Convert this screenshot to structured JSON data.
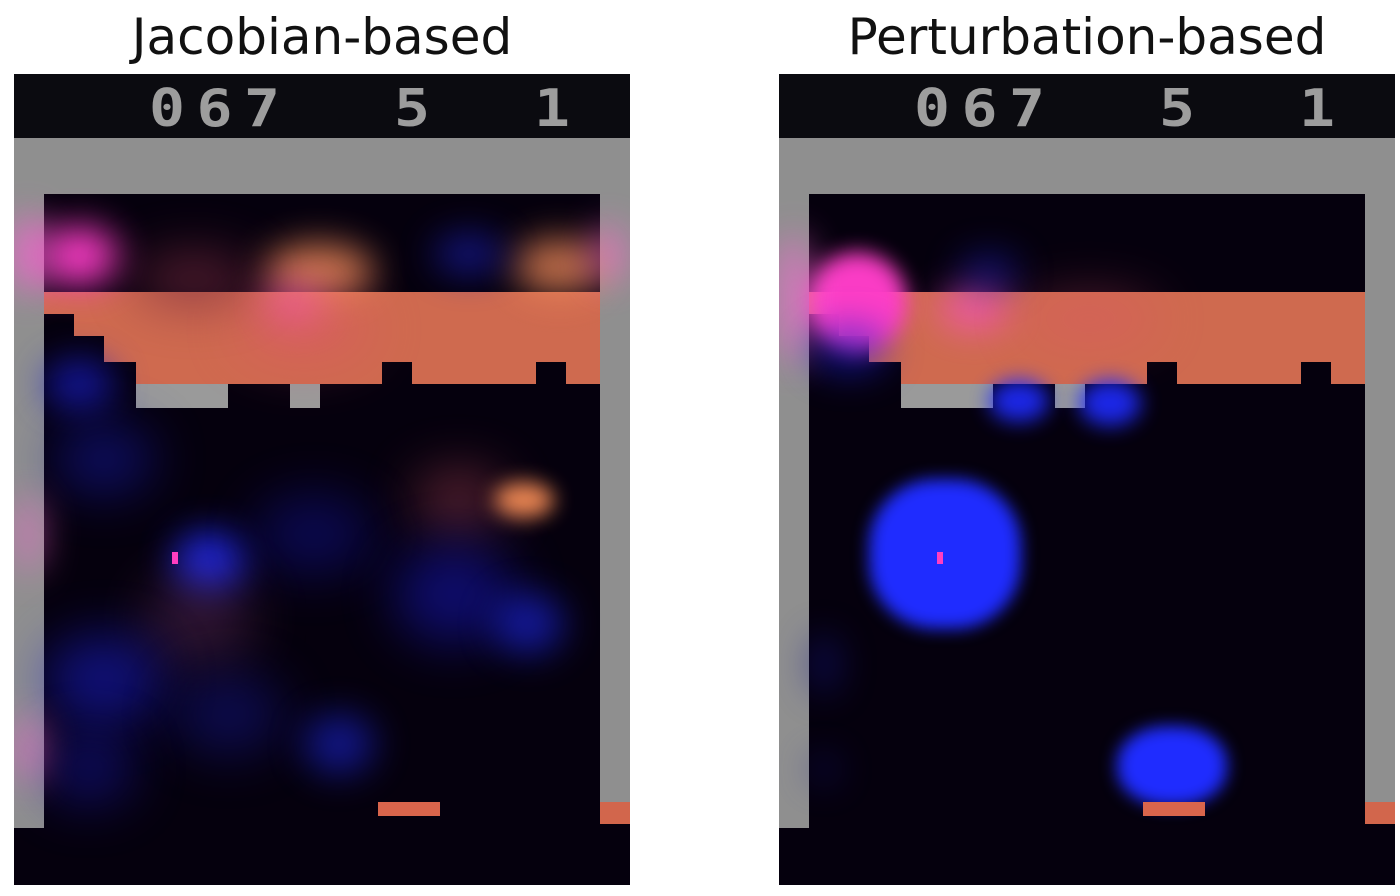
{
  "panels": [
    {
      "title": "Jacobian-based",
      "hud": {
        "score": "067",
        "lives": "5",
        "player": "1"
      }
    },
    {
      "title": "Perturbation-based",
      "hud": {
        "score": "067",
        "lives": "5",
        "player": "1"
      }
    }
  ],
  "colors": {
    "background": "#05000d",
    "wall": "#8f8f8f",
    "brick": "#cf6a4f",
    "paddle": "#d9654c",
    "ball": "#ff3ec0",
    "saliency_actor": "#1f2cff",
    "saliency_critic": "#ff4fd0"
  }
}
